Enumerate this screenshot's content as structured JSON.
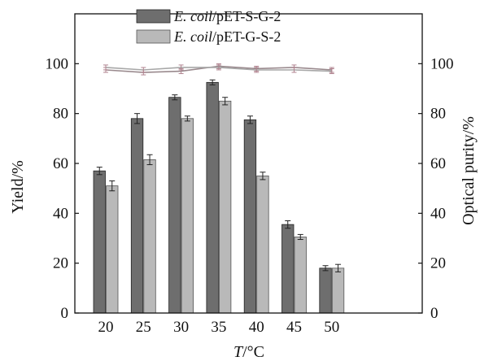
{
  "chart_data": {
    "type": "bar",
    "categories": [
      "20",
      "25",
      "30",
      "35",
      "40",
      "45",
      "50"
    ],
    "xlabel": {
      "italic": "T",
      "rest": "/°C"
    },
    "ylabel": "Yield/%",
    "y2label": "Optical purity/%",
    "ylim": [
      0,
      120
    ],
    "y2lim": [
      0,
      120
    ],
    "yticks": [
      "0",
      "20",
      "40",
      "60",
      "80",
      "100"
    ],
    "y2ticks": [
      "0",
      "20",
      "40",
      "60",
      "80",
      "100"
    ],
    "legend_position": "top-center",
    "grid": false,
    "series": [
      {
        "name": {
          "italic": "E. coil",
          "rest": "/pET-S-G-2"
        },
        "color": "#6e6e6e",
        "values": [
          57,
          78,
          86.5,
          92.5,
          77.5,
          35.5,
          18
        ],
        "errors": [
          1.5,
          2,
          1,
          1,
          1.5,
          1.5,
          1
        ],
        "optical_purity": [
          97.5,
          96.5,
          97,
          99,
          98,
          98.5,
          97.5
        ],
        "purity_color": "#9a8a8e"
      },
      {
        "name": {
          "italic": "E. coil",
          "rest": "/pET-G-S-2"
        },
        "color": "#b9b9b9",
        "values": [
          51,
          61.5,
          78,
          85,
          55,
          30.5,
          18
        ],
        "errors": [
          2,
          2,
          1,
          1.5,
          1.5,
          1,
          1.5
        ],
        "optical_purity": [
          98.5,
          97.5,
          98.5,
          98.5,
          97.5,
          97.5,
          97
        ],
        "purity_color": "#a7a7a7"
      }
    ]
  }
}
